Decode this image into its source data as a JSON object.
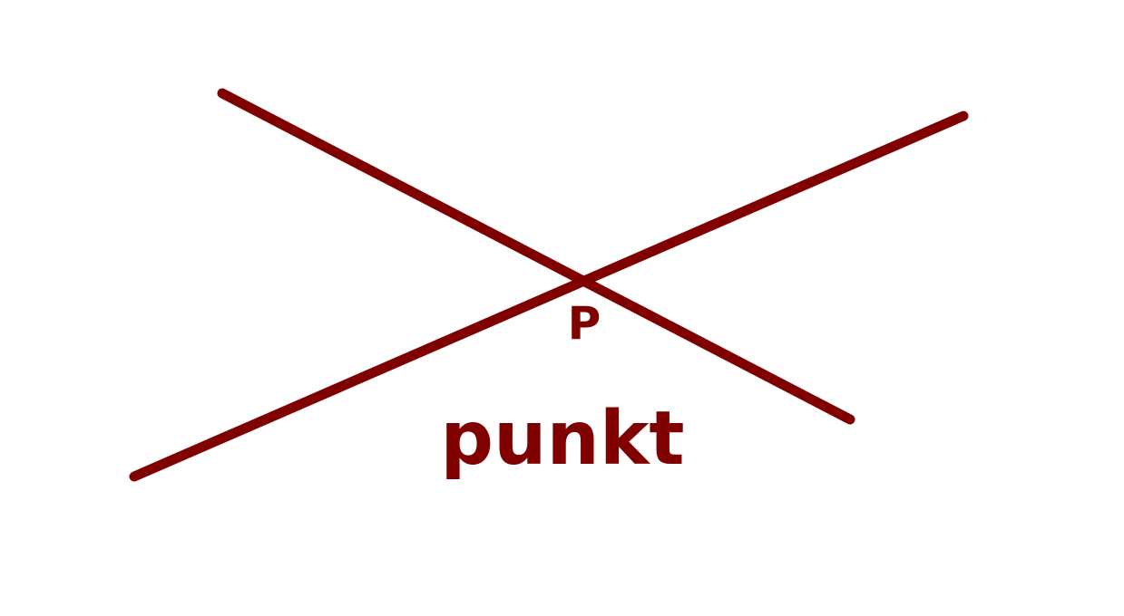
{
  "diagram": {
    "ink_color": "#800000",
    "background_color": "#ffffff",
    "intersection_label": "P",
    "caption": "punkt"
  }
}
